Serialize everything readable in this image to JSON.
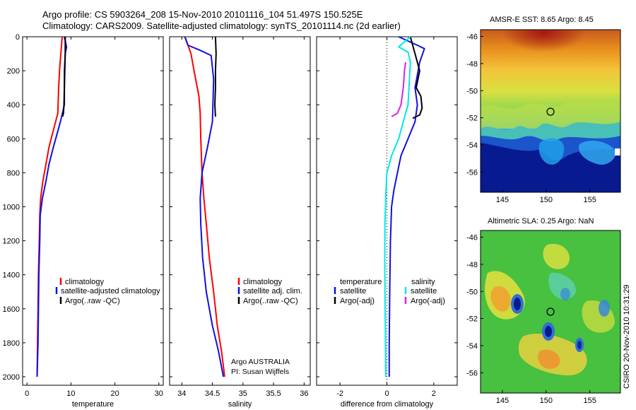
{
  "title": {
    "line1": "Argo profile: CS 5903264_208 15-Nov-2010 20101116_104 51.497S 150.525E",
    "line2": "Climatology: CARS2009. Satellite-adjusted climatology: synTS_20101114.nc (2d earlier)"
  },
  "colors": {
    "red": "#ff0000",
    "blue": "#1010e0",
    "black": "#000000",
    "cyan": "#00e8e8",
    "magenta": "#e020e0"
  },
  "chart_data": [
    {
      "id": "temperature",
      "type": "line",
      "xlabel": "temperature",
      "ylabel": "",
      "xlim": [
        -1,
        31
      ],
      "ylim": [
        2050,
        0
      ],
      "xticks": [
        0,
        10,
        20,
        30
      ],
      "yticks": [
        0,
        200,
        400,
        600,
        800,
        1000,
        1200,
        1400,
        1600,
        1800,
        2000
      ],
      "legend": {
        "placement": "lower-left",
        "entries": [
          "climatology",
          "satellite-adjusted climatology",
          "Argo(..raw -QC)"
        ]
      },
      "series": [
        {
          "name": "climatology",
          "color": "red",
          "x": [
            8.0,
            7.7,
            7.4,
            7.2,
            7.0,
            6.0,
            5.0,
            4.3,
            3.6,
            3.1,
            2.9,
            2.8,
            2.6,
            2.5,
            2.4,
            2.3
          ],
          "y": [
            0,
            100,
            200,
            300,
            450,
            550,
            650,
            750,
            850,
            950,
            1050,
            1200,
            1400,
            1600,
            1800,
            2000
          ]
        },
        {
          "name": "satellite-adjusted climatology",
          "color": "blue",
          "x": [
            8.5,
            9.0,
            8.7,
            8.5,
            8.5,
            7.6,
            6.0,
            5.0,
            4.3,
            3.5,
            3.0,
            2.9,
            2.7,
            2.6,
            2.5,
            2.3
          ],
          "y": [
            0,
            60,
            100,
            200,
            400,
            500,
            650,
            750,
            850,
            950,
            1050,
            1200,
            1400,
            1600,
            1800,
            2000
          ]
        },
        {
          "name": "Argo(..raw -QC)",
          "color": "black",
          "x": [
            8.7,
            8.7,
            8.6,
            8.5,
            8.4,
            8.3,
            8.1
          ],
          "y": [
            0,
            100,
            200,
            300,
            400,
            450,
            470
          ]
        }
      ]
    },
    {
      "id": "salinity",
      "type": "line",
      "xlabel": "salinity",
      "ylabel": "",
      "xlim": [
        33.8,
        36.1
      ],
      "ylim": [
        2050,
        0
      ],
      "xticks": [
        34,
        34.5,
        35,
        35.5,
        36
      ],
      "yticks": [
        0,
        200,
        400,
        600,
        800,
        1000,
        1200,
        1400,
        1600,
        1800,
        2000
      ],
      "legend": {
        "placement": "lower-left",
        "entries": [
          "climatology",
          "satellite adj. clim.",
          "Argo(..raw -QC)"
        ]
      },
      "annotation": {
        "line1": "Argo AUSTRALIA",
        "line2": "PI: Susan Wijffels"
      },
      "series": [
        {
          "name": "climatology",
          "color": "red",
          "x": [
            34.05,
            34.1,
            34.15,
            34.2,
            34.28,
            34.3,
            34.31,
            34.33,
            34.36,
            34.4,
            34.45,
            34.52,
            34.58,
            34.65,
            34.7
          ],
          "y": [
            0,
            50,
            100,
            200,
            350,
            450,
            600,
            800,
            950,
            1100,
            1300,
            1500,
            1700,
            1850,
            2000
          ]
        },
        {
          "name": "satellite adj. clim.",
          "color": "blue",
          "x": [
            34.05,
            34.1,
            34.3,
            34.48,
            34.52,
            34.5,
            34.42,
            34.33,
            34.3,
            34.31,
            34.34,
            34.4,
            34.5,
            34.6,
            34.68
          ],
          "y": [
            0,
            50,
            80,
            110,
            250,
            500,
            650,
            800,
            950,
            1100,
            1300,
            1500,
            1700,
            1850,
            2000
          ]
        },
        {
          "name": "Argo(..raw -QC)",
          "color": "black",
          "x": [
            34.55,
            34.56,
            34.55,
            34.55,
            34.54,
            34.55
          ],
          "y": [
            0,
            100,
            200,
            300,
            400,
            470
          ]
        }
      ]
    },
    {
      "id": "difference",
      "type": "line",
      "xlabel": "difference from climatology",
      "ylabel": "",
      "xlim": [
        -3,
        3
      ],
      "ylim": [
        2050,
        0
      ],
      "xticks": [
        -2,
        0,
        2
      ],
      "yticks": [
        0,
        200,
        400,
        600,
        800,
        1000,
        1200,
        1400,
        1600,
        1800,
        2000
      ],
      "zero_line": true,
      "legend": {
        "placement": "lower-center",
        "group1_title": "temperature",
        "group2_title": "salinity",
        "group1": [
          "satellite",
          "Argo(-adj)"
        ],
        "group2": [
          "satellite",
          "Argo(-adj)"
        ]
      },
      "series": [
        {
          "name": "temperature satellite",
          "color": "blue",
          "x": [
            0.5,
            1.3,
            1.6,
            1.4,
            1.2,
            1.3,
            1.2,
            0.9,
            0.6,
            0.45,
            0.3,
            0.2,
            0.15,
            0.12,
            0.1,
            0.1
          ],
          "y": [
            0,
            50,
            70,
            150,
            300,
            400,
            500,
            600,
            700,
            800,
            900,
            1000,
            1200,
            1500,
            1800,
            2000
          ]
        },
        {
          "name": "temperature Argo(-adj)",
          "color": "black",
          "x": [
            1.0,
            1.2,
            1.4,
            1.25,
            1.45,
            1.5,
            1.4,
            1.1
          ],
          "y": [
            0,
            100,
            200,
            300,
            350,
            420,
            460,
            480
          ]
        },
        {
          "name": "salinity satellite",
          "color": "cyan",
          "x": [
            1.0,
            0.5,
            0.9,
            1.0,
            0.9,
            0.7,
            0.5,
            0.2,
            0.0,
            -0.05,
            -0.08,
            -0.09,
            -0.08,
            -0.06,
            -0.05
          ],
          "y": [
            0,
            60,
            90,
            150,
            400,
            500,
            600,
            700,
            800,
            950,
            1100,
            1300,
            1500,
            1800,
            2000
          ]
        },
        {
          "name": "salinity Argo(-adj)",
          "color": "magenta",
          "x": [
            0.8,
            0.75,
            0.7,
            0.65,
            0.6,
            0.45,
            0.2
          ],
          "y": [
            150,
            200,
            300,
            350,
            400,
            450,
            470
          ]
        }
      ]
    },
    {
      "id": "sst-map",
      "type": "heatmap",
      "title": "AMSR-E SST: 8.65 Argo: 8.45",
      "xticks": [
        145,
        150,
        155
      ],
      "yticks": [
        -46,
        -48,
        -50,
        -52,
        -54,
        -56
      ],
      "xlim": [
        142.5,
        158.5
      ],
      "ylim": [
        -57.5,
        -45.5
      ],
      "marker": {
        "lon": 150.5,
        "lat": -51.5
      }
    },
    {
      "id": "sla-map",
      "type": "heatmap",
      "title": "Altimetric SLA: 0.25 Argo: NaN",
      "xticks": [
        145,
        150,
        155
      ],
      "yticks": [
        -46,
        -48,
        -50,
        -52,
        -54,
        -56
      ],
      "xlim": [
        142.5,
        158.5
      ],
      "ylim": [
        -57.5,
        -45.5
      ],
      "marker": {
        "lon": 150.5,
        "lat": -51.5
      }
    }
  ],
  "side_label": "CSIRO 20-Nov-2010 10:31:29"
}
